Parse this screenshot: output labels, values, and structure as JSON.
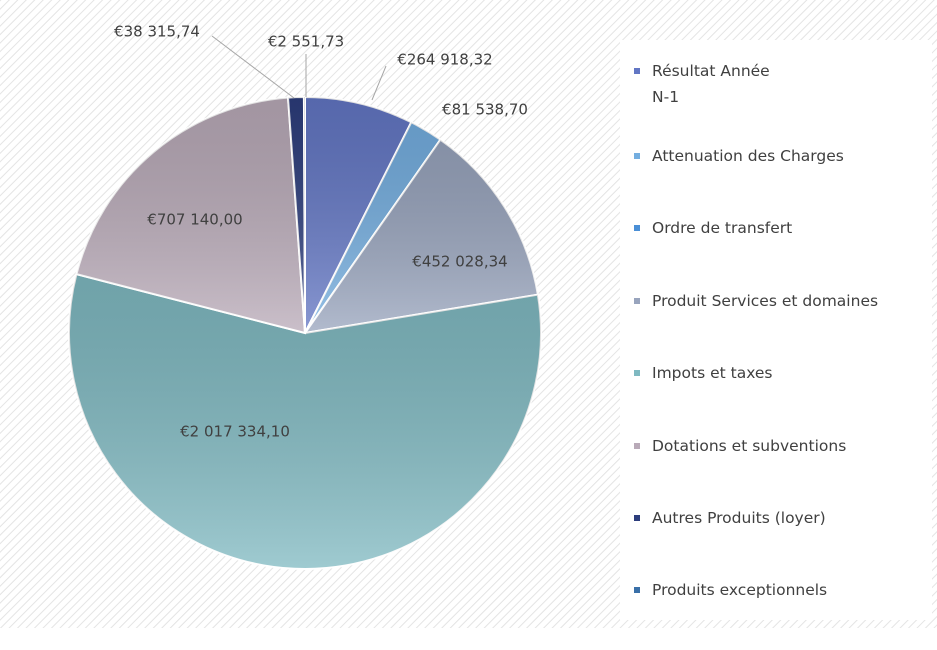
{
  "chart_data": {
    "type": "pie",
    "categories": [
      "Résultat Année N-1",
      "Attenuation des Charges",
      "Ordre de transfert",
      "Produit Services et domaines",
      "Impots et taxes",
      "Dotations et subventions",
      "Autres Produits (loyer)",
      "Produits exceptionnels"
    ],
    "values": [
      264918.32,
      81538.7,
      null,
      452028.34,
      2017334.1,
      707140.0,
      38315.74,
      2551.73
    ],
    "value_labels": [
      "€264 918,32",
      "€81 538,70",
      null,
      "€452 028,34",
      "€2 017 334,10",
      "€707 140,00",
      "€38 315,74",
      "€2 551,73"
    ],
    "colors": [
      "#6276c4",
      "#74aee0",
      "#4a8fd6",
      "#98a4bd",
      "#7fb9c1",
      "#b9aab8",
      "#2c3d7c",
      "#3a70a8"
    ],
    "legend": "right"
  }
}
